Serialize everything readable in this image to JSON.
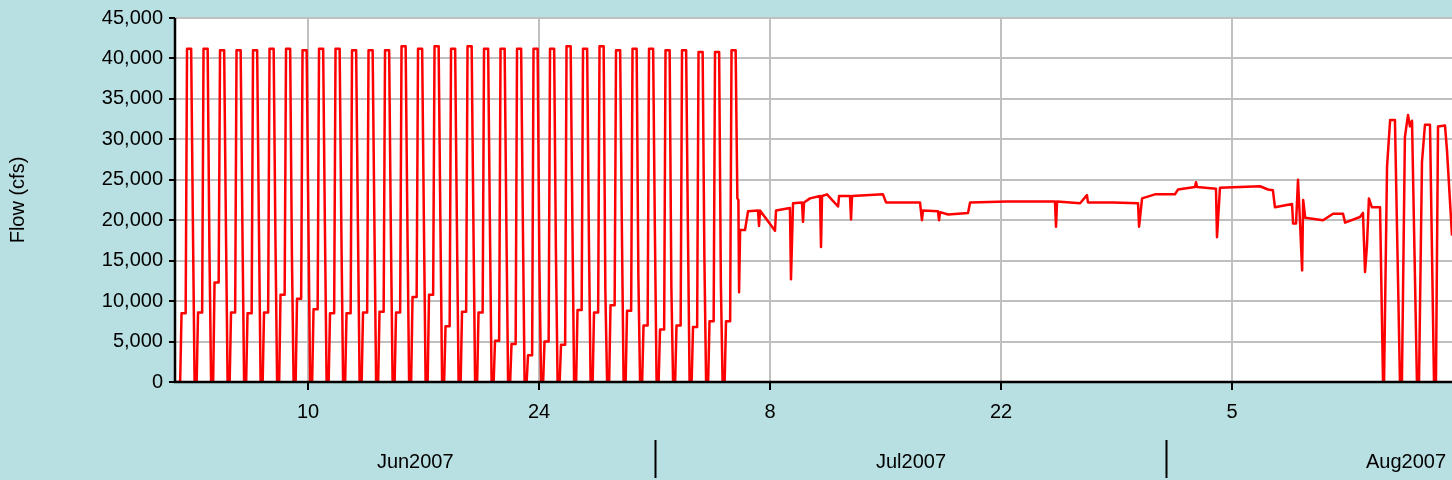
{
  "chart_data": {
    "type": "line",
    "ylabel": "Flow (cfs)",
    "xlim": [
      "2007-06-01T22:30",
      "2007-08-18T08:00"
    ],
    "xticks": [
      {
        "value": "2007-06-10",
        "label": "10"
      },
      {
        "value": "2007-06-24",
        "label": "24"
      },
      {
        "value": "2007-07-08",
        "label": "8"
      },
      {
        "value": "2007-07-22",
        "label": "22"
      },
      {
        "value": "2007-08-05",
        "label": "5"
      }
    ],
    "ylim": [
      0,
      45000
    ],
    "yticks": [
      0,
      {
        "value": 5000,
        "label": "5,000"
      },
      {
        "value": 10000,
        "label": "10,000"
      },
      {
        "value": 15000,
        "label": "15,000"
      },
      {
        "value": 20000,
        "label": "20,000"
      },
      {
        "value": 25000,
        "label": "25,000"
      },
      {
        "value": 30000,
        "label": "30,000"
      },
      {
        "value": 35000,
        "label": "35,000"
      },
      {
        "value": 40000,
        "label": "40,000"
      },
      {
        "value": 45000,
        "label": "45,000"
      }
    ],
    "grid": true,
    "legend": false,
    "annotations": [
      "Jun2007",
      "Jul2007",
      "Aug2007"
    ],
    "series": [
      {
        "color": "#ff0000",
        "x": [
          "2007-06-01T22:30",
          "2007-06-02T06:00",
          "2007-06-02T08:00",
          "2007-06-02T14:00",
          "2007-06-02T16:00",
          "2007-06-02T22:00",
          "2007-06-03T00:30",
          "2007-06-03T03:00",
          "2007-06-03T06:00",
          "2007-06-03T08:00",
          "2007-06-03T14:00",
          "2007-06-03T16:00",
          "2007-06-03T22:00",
          "2007-06-04T00:30",
          "2007-06-04T03:00",
          "2007-06-04T06:00",
          "2007-06-04T08:00",
          "2007-06-04T14:00",
          "2007-06-04T16:00",
          "2007-06-04T22:00",
          "2007-06-05T00:30",
          "2007-06-05T03:00",
          "2007-06-05T06:00",
          "2007-06-05T08:00",
          "2007-06-05T14:00",
          "2007-06-05T16:00",
          "2007-06-05T22:00",
          "2007-06-06T00:30",
          "2007-06-06T03:00",
          "2007-06-06T06:00",
          "2007-06-06T08:00",
          "2007-06-06T14:00",
          "2007-06-06T16:00",
          "2007-06-06T22:00",
          "2007-06-07T00:30",
          "2007-06-07T03:00",
          "2007-06-07T06:00",
          "2007-06-07T08:00",
          "2007-06-07T14:00",
          "2007-06-07T16:00",
          "2007-06-07T22:00",
          "2007-06-08T00:30",
          "2007-06-08T03:00",
          "2007-06-08T06:00",
          "2007-06-08T08:00",
          "2007-06-08T14:00",
          "2007-06-08T16:00",
          "2007-06-08T22:00",
          "2007-06-09T00:30",
          "2007-06-09T03:00",
          "2007-06-09T06:00",
          "2007-06-09T08:00",
          "2007-06-09T14:00",
          "2007-06-09T16:00",
          "2007-06-09T22:00",
          "2007-06-10T00:30",
          "2007-06-10T03:00",
          "2007-06-10T06:00",
          "2007-06-10T08:00",
          "2007-06-10T14:00",
          "2007-06-10T16:00",
          "2007-06-10T22:00",
          "2007-06-11T00:30",
          "2007-06-11T03:00",
          "2007-06-11T06:00",
          "2007-06-11T08:00",
          "2007-06-11T14:00",
          "2007-06-11T16:00",
          "2007-06-11T22:00",
          "2007-06-12T00:30",
          "2007-06-12T03:00",
          "2007-06-12T06:00",
          "2007-06-12T08:00",
          "2007-06-12T14:00",
          "2007-06-12T16:00",
          "2007-06-12T22:00",
          "2007-06-13T00:30",
          "2007-06-13T03:00",
          "2007-06-13T06:00",
          "2007-06-13T08:00",
          "2007-06-13T14:00",
          "2007-06-13T16:00",
          "2007-06-13T22:00",
          "2007-06-14T00:30",
          "2007-06-14T03:00",
          "2007-06-14T06:00",
          "2007-06-14T08:00",
          "2007-06-14T14:00",
          "2007-06-14T16:00",
          "2007-06-14T22:00",
          "2007-06-15T00:30",
          "2007-06-15T03:00",
          "2007-06-15T06:00",
          "2007-06-15T08:00",
          "2007-06-15T14:00",
          "2007-06-15T16:00",
          "2007-06-15T22:00",
          "2007-06-16T00:30",
          "2007-06-16T03:00",
          "2007-06-16T06:00",
          "2007-06-16T08:00",
          "2007-06-16T14:00",
          "2007-06-16T16:00",
          "2007-06-16T22:00",
          "2007-06-17T00:30",
          "2007-06-17T03:00",
          "2007-06-17T06:00",
          "2007-06-17T08:00",
          "2007-06-17T14:00",
          "2007-06-17T16:00",
          "2007-06-17T22:00",
          "2007-06-18T00:30",
          "2007-06-18T03:00",
          "2007-06-18T06:00",
          "2007-06-18T08:00",
          "2007-06-18T14:00",
          "2007-06-18T16:00",
          "2007-06-18T22:00",
          "2007-06-19T00:30",
          "2007-06-19T03:00",
          "2007-06-19T06:00",
          "2007-06-19T08:00",
          "2007-06-19T14:00",
          "2007-06-19T16:00",
          "2007-06-19T22:00",
          "2007-06-20T00:30",
          "2007-06-20T03:00",
          "2007-06-20T06:00",
          "2007-06-20T08:00",
          "2007-06-20T14:00",
          "2007-06-20T16:00",
          "2007-06-20T22:00",
          "2007-06-21T00:30",
          "2007-06-21T03:00",
          "2007-06-21T06:00",
          "2007-06-21T08:00",
          "2007-06-21T14:00",
          "2007-06-21T16:00",
          "2007-06-21T22:00",
          "2007-06-22T00:30",
          "2007-06-22T03:00",
          "2007-06-22T06:00",
          "2007-06-22T08:00",
          "2007-06-22T14:00",
          "2007-06-22T16:00",
          "2007-06-22T22:00",
          "2007-06-23T00:30",
          "2007-06-23T03:00",
          "2007-06-23T06:00",
          "2007-06-23T08:00",
          "2007-06-23T14:00",
          "2007-06-23T16:00",
          "2007-06-23T22:00",
          "2007-06-24T00:30",
          "2007-06-24T03:00",
          "2007-06-24T06:00",
          "2007-06-24T08:00",
          "2007-06-24T14:00",
          "2007-06-24T16:00",
          "2007-06-24T22:00",
          "2007-06-25T00:30",
          "2007-06-25T03:00",
          "2007-06-25T06:00",
          "2007-06-25T08:00",
          "2007-06-25T14:00",
          "2007-06-25T16:00",
          "2007-06-25T22:00",
          "2007-06-26T00:30",
          "2007-06-26T03:00",
          "2007-06-26T06:00",
          "2007-06-26T08:00",
          "2007-06-26T14:00",
          "2007-06-26T16:00",
          "2007-06-26T22:00",
          "2007-06-27T00:30",
          "2007-06-27T03:00",
          "2007-06-27T06:00",
          "2007-06-27T08:00",
          "2007-06-27T14:00",
          "2007-06-27T16:00",
          "2007-06-27T22:00",
          "2007-06-28T00:30",
          "2007-06-28T03:00",
          "2007-06-28T06:00",
          "2007-06-28T08:00",
          "2007-06-28T14:00",
          "2007-06-28T16:00",
          "2007-06-28T22:00",
          "2007-06-29T00:30",
          "2007-06-29T03:00",
          "2007-06-29T06:00",
          "2007-06-29T08:00",
          "2007-06-29T14:00",
          "2007-06-29T16:00",
          "2007-06-29T22:00",
          "2007-06-30T00:30",
          "2007-06-30T03:00",
          "2007-06-30T06:00",
          "2007-06-30T08:00",
          "2007-06-30T14:00",
          "2007-06-30T16:00",
          "2007-06-30T22:00",
          "2007-07-01T00:30",
          "2007-07-01T03:00",
          "2007-07-01T06:00",
          "2007-07-01T08:00",
          "2007-07-01T14:00",
          "2007-07-01T16:00",
          "2007-07-01T22:00",
          "2007-07-02T00:30",
          "2007-07-02T03:00",
          "2007-07-02T06:00",
          "2007-07-02T08:00",
          "2007-07-02T14:00",
          "2007-07-02T16:00",
          "2007-07-02T22:00",
          "2007-07-03T00:30",
          "2007-07-03T03:00",
          "2007-07-03T06:00",
          "2007-07-03T08:00",
          "2007-07-03T14:00",
          "2007-07-03T16:00",
          "2007-07-03T22:00",
          "2007-07-04T00:30",
          "2007-07-04T03:00",
          "2007-07-04T06:00",
          "2007-07-04T08:00",
          "2007-07-04T14:00",
          "2007-07-04T16:00",
          "2007-07-04T22:00",
          "2007-07-05T00:30",
          "2007-07-05T03:00",
          "2007-07-05T06:00",
          "2007-07-05T08:00",
          "2007-07-05T14:00",
          "2007-07-05T16:00",
          "2007-07-05T22:00",
          "2007-07-06T00:30",
          "2007-07-06T02:00",
          "2007-07-06T03:00",
          "2007-07-06T04:30",
          "2007-07-06T11:40",
          "2007-07-06T16:00",
          "2007-07-07T06:30",
          "2007-07-07T08:00",
          "2007-07-07T09:30",
          "2007-07-08T07:15",
          "2007-07-08T08:45",
          "2007-07-09T05:00",
          "2007-07-09T06:30",
          "2007-07-09T09:30",
          "2007-07-09T22:30",
          "2007-07-10T00:00",
          "2007-07-10T01:30",
          "2007-07-10T10:10",
          "2007-07-11T00:45",
          "2007-07-11T02:10",
          "2007-07-11T03:40",
          "2007-07-11T10:55",
          "2007-07-12T03:00",
          "2007-07-12T04:30",
          "2007-07-12T20:20",
          "2007-07-12T21:50",
          "2007-07-12T23:20",
          "2007-07-14T20:20",
          "2007-07-15T00:45",
          "2007-07-17T02:10",
          "2007-07-17T05:00",
          "2007-07-17T06:30",
          "2007-07-18T04:20",
          "2007-07-18T05:50",
          "2007-07-18T07:20",
          "2007-07-18T19:00",
          "2007-07-20T00:00",
          "2007-07-20T03:00",
          "2007-07-22T08:40",
          "2007-07-25T06:30",
          "2007-07-25T08:00",
          "2007-07-25T09:30",
          "2007-07-26T19:00",
          "2007-07-27T05:00",
          "2007-07-27T06:30",
          "2007-07-28T18:55",
          "2007-07-30T07:20",
          "2007-07-30T08:50",
          "2007-07-30T13:10",
          "2007-07-31T08:00",
          "2007-08-01T13:00",
          "2007-08-01T17:30",
          "2007-08-02T18:10",
          "2007-08-02T19:40",
          "2007-08-02T21:10",
          "2007-08-04T00:40",
          "2007-08-04T02:10",
          "2007-08-04T06:30",
          "2007-08-06T16:40",
          "2007-08-07T04:20",
          "2007-08-07T11:30",
          "2007-08-07T14:30",
          "2007-08-08T15:20",
          "2007-08-08T16:50",
          "2007-08-08T21:10",
          "2007-08-09T00:00",
          "2007-08-09T03:00",
          "2007-08-09T06:00",
          "2007-08-09T07:30",
          "2007-08-09T10:30",
          "2007-08-10T12:25",
          "2007-08-11T03:00",
          "2007-08-11T17:30",
          "2007-08-11T20:30",
          "2007-08-12T18:10",
          "2007-08-12T22:30",
          "2007-08-13T01:30",
          "2007-08-13T04:20",
          "2007-08-13T07:10",
          "2007-08-13T11:30",
          "2007-08-13T23:20",
          "2007-08-14T03:40",
          "2007-08-14T05:10",
          "2007-08-14T09:30",
          "2007-08-14T14:00",
          "2007-08-14T21:00",
          "2007-08-15T04:20",
          "2007-08-15T07:10",
          "2007-08-15T11:30",
          "2007-08-15T16:00",
          "2007-08-15T18:50",
          "2007-08-15T21:50",
          "2007-08-16T05:00",
          "2007-08-16T08:00",
          "2007-08-16T12:20",
          "2007-08-16T16:40",
          "2007-08-17T00:00",
          "2007-08-17T05:50",
          "2007-08-17T08:40",
          "2007-08-17T11:40",
          "2007-08-17T21:50",
          "2007-08-18T00:40",
          "2007-08-18T08:00"
        ],
        "values": [
          0,
          0,
          8500,
          8500,
          41200,
          41200,
          19800,
          0,
          0,
          8600,
          8600,
          41200,
          41200,
          17000,
          0,
          0,
          12300,
          12300,
          41000,
          41000,
          19800,
          0,
          0,
          8600,
          8600,
          41000,
          41000,
          19500,
          0,
          0,
          8500,
          8500,
          41000,
          41000,
          19700,
          0,
          0,
          8600,
          8600,
          41200,
          41200,
          18500,
          0,
          0,
          10800,
          10800,
          41200,
          41200,
          16000,
          0,
          0,
          10300,
          10300,
          41000,
          41000,
          20000,
          0,
          0,
          9000,
          9000,
          41200,
          41200,
          19700,
          0,
          0,
          8500,
          8500,
          41200,
          41200,
          18500,
          0,
          0,
          8500,
          8500,
          41000,
          41000,
          20000,
          0,
          0,
          8600,
          8600,
          41000,
          41000,
          20000,
          0,
          0,
          8700,
          8700,
          41000,
          41000,
          18500,
          0,
          0,
          8600,
          8600,
          41500,
          41500,
          19800,
          0,
          0,
          10500,
          10500,
          41200,
          41200,
          20000,
          0,
          0,
          10800,
          10800,
          41500,
          41500,
          20000,
          0,
          0,
          6900,
          6900,
          41200,
          41200,
          19700,
          0,
          0,
          8700,
          8700,
          41500,
          41500,
          20000,
          0,
          0,
          8600,
          8600,
          41200,
          41200,
          20000,
          0,
          0,
          5100,
          5100,
          41200,
          41200,
          19600,
          0,
          0,
          4700,
          4700,
          41200,
          41200,
          19600,
          0,
          0,
          3300,
          3300,
          41200,
          41200,
          14700,
          0,
          0,
          5000,
          5000,
          41200,
          41200,
          16600,
          0,
          0,
          4600,
          4600,
          41500,
          41500,
          20000,
          0,
          0,
          8900,
          8900,
          41200,
          41200,
          18100,
          0,
          0,
          8600,
          8600,
          41500,
          41500,
          11200,
          0,
          0,
          9500,
          9500,
          41000,
          41000,
          19100,
          0,
          0,
          8800,
          8800,
          41200,
          41200,
          13100,
          0,
          0,
          7000,
          7000,
          41200,
          41200,
          19000,
          0,
          0,
          6500,
          6500,
          41000,
          41000,
          11700,
          0,
          0,
          7000,
          7000,
          41000,
          41000,
          19500,
          0,
          0,
          6800,
          6800,
          40800,
          40800,
          15600,
          0,
          0,
          7500,
          7500,
          40800,
          40800,
          12200,
          0,
          0,
          7500,
          7500,
          41000,
          41000,
          22700,
          22500,
          11100,
          18800,
          18800,
          21100,
          21200,
          19300,
          21200,
          18700,
          21200,
          21500,
          12700,
          22100,
          22200,
          19800,
          22200,
          22700,
          23000,
          16700,
          23000,
          23200,
          21700,
          23000,
          23000,
          20100,
          23000,
          23200,
          22200,
          22200,
          20000,
          21200,
          21100,
          20000,
          21000,
          20700,
          20900,
          22200,
          22300,
          22300,
          19200,
          22300,
          22100,
          23100,
          22200,
          22200,
          22100,
          19200,
          22700,
          23200,
          23200,
          23800,
          24100,
          24700,
          24100,
          23900,
          17900,
          24000,
          24200,
          23800,
          23700,
          21600,
          22000,
          19600,
          19600,
          25000,
          19600,
          13800,
          22500,
          20300,
          20000,
          20800,
          20800,
          19700,
          20400,
          20900,
          13600,
          16900,
          22700,
          21600,
          21600,
          0,
          0,
          26600,
          32400,
          32400,
          0,
          0,
          30300,
          33000,
          31600,
          32300,
          0,
          0,
          27200,
          31800,
          31800,
          0,
          0,
          31600,
          31700,
          28700,
          18100
        ]
      }
    ]
  }
}
